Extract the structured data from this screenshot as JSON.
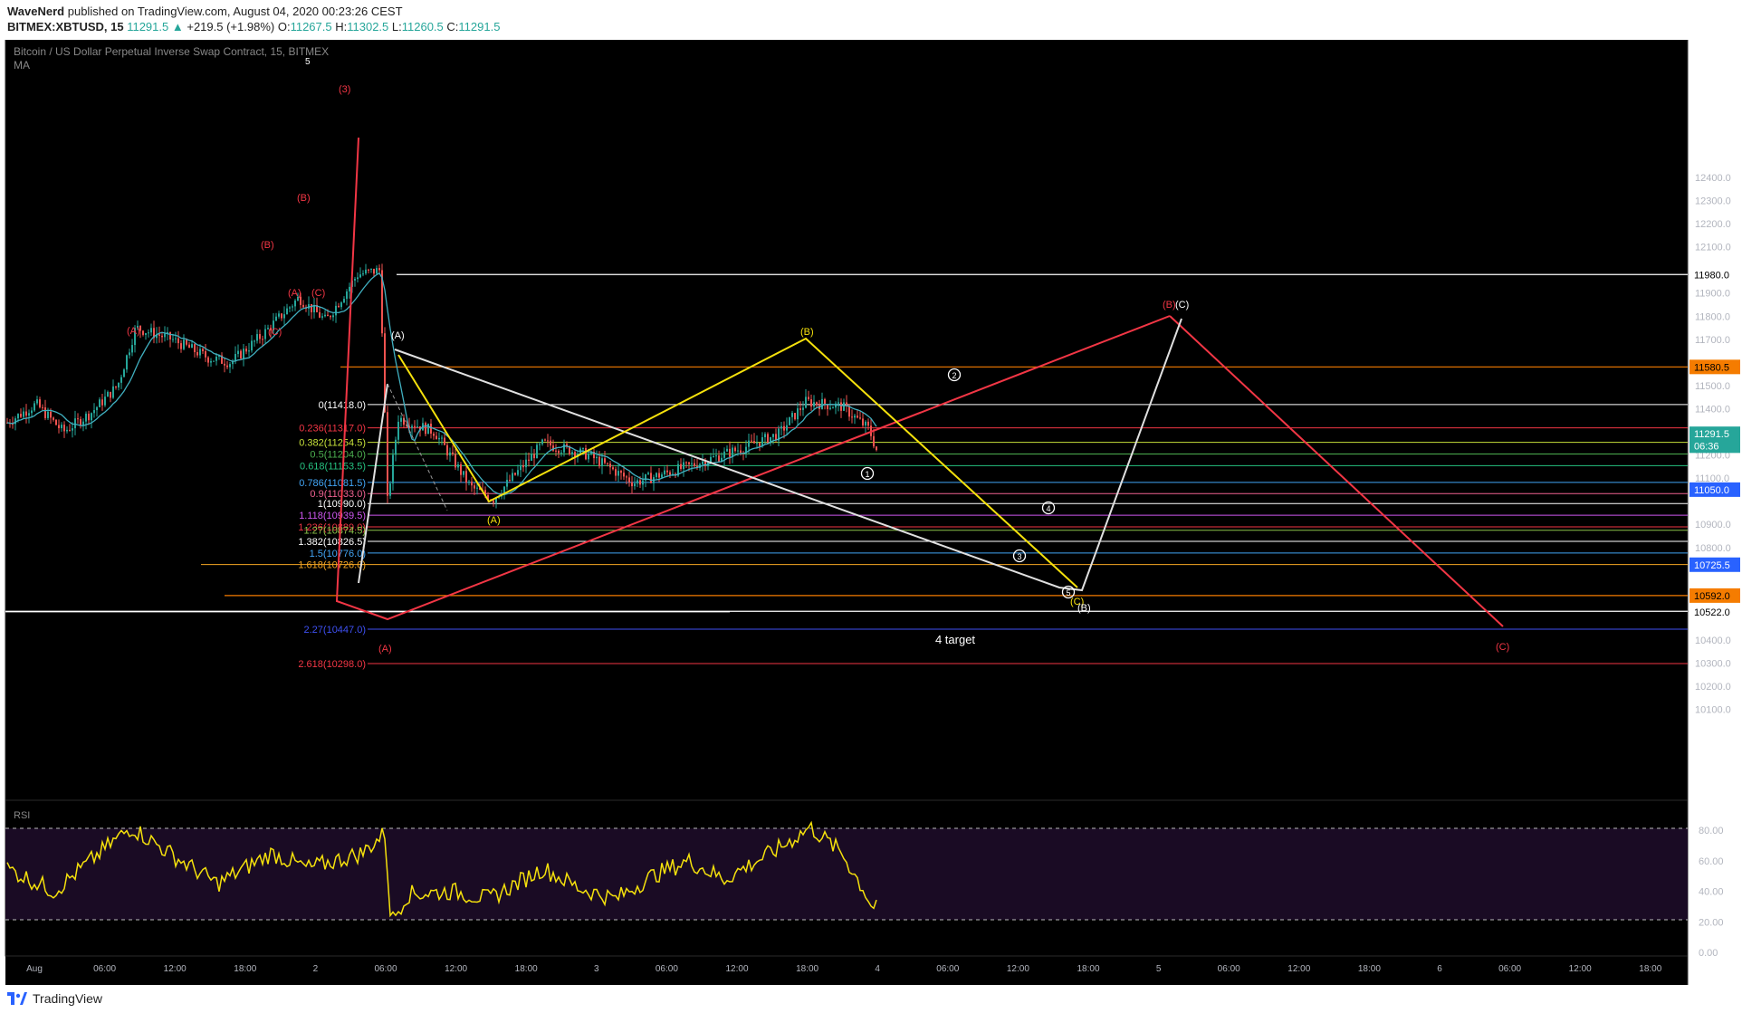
{
  "header": {
    "author": "WaveNerd",
    "published": "published on TradingView.com, August 04, 2020 00:23:26 CEST",
    "symbol": "BITMEX:XBTUSD, 15",
    "last": "11291.5",
    "change": "+219.5 (+1.98%)",
    "o_label": "O:",
    "o": "11267.5",
    "h_label": "H:",
    "h": "11302.5",
    "l_label": "L:",
    "l": "11260.5",
    "c_label": "C:",
    "c": "11291.5"
  },
  "footer": {
    "brand": "TradingView"
  },
  "chart_data": {
    "type": "candlestick",
    "title": "Bitcoin / US Dollar Perpetual Inverse Swap Contract, 15, BITMEX",
    "indicator": "MA",
    "ylim": [
      10050,
      12450
    ],
    "y_ticks": [
      "12400.0",
      "12300.0",
      "12200.0",
      "12100.0",
      "11900.0",
      "11800.0",
      "11700.0",
      "11500.0",
      "11400.0",
      "11200.0",
      "11100.0",
      "10900.0",
      "10800.0",
      "10400.0",
      "10300.0",
      "10200.0",
      "10100.0"
    ],
    "x_ticks": [
      "Aug",
      "06:00",
      "12:00",
      "18:00",
      "2",
      "06:00",
      "12:00",
      "18:00",
      "3",
      "06:00",
      "12:00",
      "18:00",
      "4",
      "06:00",
      "12:00",
      "18:00",
      "5",
      "06:00",
      "12:00",
      "18:00",
      "6",
      "06:00",
      "12:00",
      "18:00"
    ],
    "price_tags": [
      {
        "label": "11980.0",
        "value": 11980,
        "bg": "#ffffff",
        "fg": "#000000"
      },
      {
        "label": "11580.5",
        "value": 11580.5,
        "bg": "#f57c00",
        "fg": "#000000"
      },
      {
        "label": "11291.5",
        "value": 11291.5,
        "bg": "#26a69a",
        "fg": "#ffffff"
      },
      {
        "label": "06:36",
        "value": 11240,
        "bg": "#26a69a",
        "fg": "#ffffff"
      },
      {
        "label": "11050.0",
        "value": 11050,
        "bg": "#2962ff",
        "fg": "#ffffff"
      },
      {
        "label": "10725.5",
        "value": 10725.5,
        "bg": "#2962ff",
        "fg": "#ffffff"
      },
      {
        "label": "10592.0",
        "value": 10592,
        "bg": "#f57c00",
        "fg": "#000000"
      },
      {
        "label": "10524.0",
        "value": 10524,
        "bg": "#ffffff",
        "fg": "#000000"
      },
      {
        "label": "10522.0",
        "value": 10522,
        "bg": "#ffffff",
        "fg": "#000000"
      }
    ],
    "horizontal_levels": [
      {
        "value": 11980,
        "color": "#ffffff"
      },
      {
        "value": 11580.5,
        "color": "#f57c00"
      },
      {
        "value": 10592,
        "color": "#f57c00"
      },
      {
        "value": 10524,
        "color": "#ffffff"
      },
      {
        "value": 10522,
        "color": "#ffffff"
      }
    ],
    "fib_levels": [
      {
        "label": "0(11418.0)",
        "value": 11418,
        "color": "#ffffff"
      },
      {
        "label": "0.236(11317.0)",
        "value": 11317,
        "color": "#f23645"
      },
      {
        "label": "0.382(11254.5)",
        "value": 11254.5,
        "color": "#c6e03a"
      },
      {
        "label": "0.5(11204.0)",
        "value": 11204,
        "color": "#4caf50"
      },
      {
        "label": "0.618(11153.5)",
        "value": 11153.5,
        "color": "#26c281"
      },
      {
        "label": "0.786(11081.5)",
        "value": 11081.5,
        "color": "#42a5f5"
      },
      {
        "label": "0.9(11033.0)",
        "value": 11033,
        "color": "#f06292"
      },
      {
        "label": "1(10990.0)",
        "value": 10990,
        "color": "#ffffff"
      },
      {
        "label": "1.118(10939.5)",
        "value": 10939.5,
        "color": "#ce57f0"
      },
      {
        "label": "1.236(10889.0)",
        "value": 10889,
        "color": "#f23645"
      },
      {
        "label": "1.27(10874.5)",
        "value": 10874.5,
        "color": "#8bc34a"
      },
      {
        "label": "1.382(10826.5)",
        "value": 10826.5,
        "color": "#ffffff"
      },
      {
        "label": "1.5(10776.0)",
        "value": 10776,
        "color": "#42a5f5"
      },
      {
        "label": "1.618(10726.0)",
        "value": 10726,
        "color": "#f5a623"
      },
      {
        "label": "2.27(10447.0)",
        "value": 10447,
        "color": "#3f51f5"
      },
      {
        "label": "2.618(10298.0)",
        "value": 10298,
        "color": "#f23645"
      }
    ],
    "annotations": [
      "(3)",
      "(B)",
      "(B)",
      "(A)",
      "(C)",
      "(A)",
      "(C)",
      "(A)",
      "(A)",
      "(A)",
      "(B)",
      "(C)",
      "(B)",
      "(C)",
      "(C)",
      "(B)",
      "1",
      "2",
      "3",
      "4",
      "5",
      "5",
      "4 target"
    ],
    "rsi": {
      "label": "RSI",
      "levels": [
        "80.00",
        "60.00",
        "40.00",
        "20.00",
        "0.00"
      ],
      "upper": 80,
      "lower": 20
    }
  }
}
